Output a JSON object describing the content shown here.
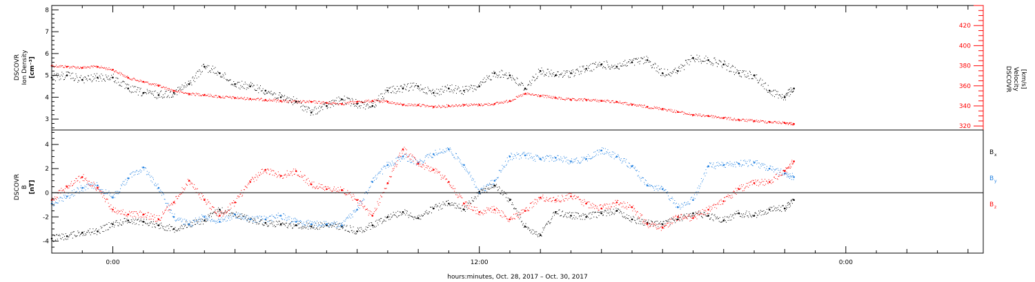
{
  "figure": {
    "xlabel": "hours:minutes, Oct. 28, 2017 – Oct. 30, 2017",
    "x_tick_labels": [
      {
        "hour": 0,
        "label": "0:00"
      },
      {
        "hour": 12,
        "label": "12:00"
      },
      {
        "hour": 24,
        "label": "0:00"
      }
    ],
    "xlim_hours": [
      -2,
      28.5
    ],
    "data_end_hour": 22.3
  },
  "colors": {
    "black": "#000000",
    "red": "#ff0000",
    "blue": "#1f7fe0"
  },
  "chart_data": [
    {
      "type": "scatter",
      "panel": "plasma",
      "ylabel_lines": [
        "DSCOVR",
        "Ion Density",
        "[cm⁻³]"
      ],
      "ylim": [
        2.5,
        8.2
      ],
      "y_ticks": [
        3,
        4,
        5,
        6,
        7,
        8
      ],
      "right_axis": {
        "label_lines": [
          "DSCOVR",
          "Velocity",
          "[km/s]"
        ],
        "ylim": [
          316,
          440
        ],
        "ticks": [
          320,
          340,
          360,
          380,
          400,
          420
        ],
        "color": "#ff0000"
      },
      "series": [
        {
          "color": "#000000",
          "axis": "left",
          "points": [
            [
              -2.0,
              4.9
            ],
            [
              -1.5,
              5.0
            ],
            [
              -1.0,
              4.8
            ],
            [
              -0.5,
              4.9
            ],
            [
              0.0,
              4.9
            ],
            [
              0.5,
              4.4
            ],
            [
              1.0,
              4.2
            ],
            [
              1.5,
              4.1
            ],
            [
              2.0,
              4.2
            ],
            [
              2.5,
              4.6
            ],
            [
              3.0,
              5.4
            ],
            [
              3.5,
              5.1
            ],
            [
              4.0,
              4.6
            ],
            [
              4.5,
              4.5
            ],
            [
              5.0,
              4.3
            ],
            [
              5.5,
              4.0
            ],
            [
              6.0,
              3.8
            ],
            [
              6.5,
              3.3
            ],
            [
              7.0,
              3.6
            ],
            [
              7.5,
              3.9
            ],
            [
              8.0,
              3.7
            ],
            [
              8.5,
              3.6
            ],
            [
              9.0,
              4.3
            ],
            [
              9.5,
              4.4
            ],
            [
              10.0,
              4.5
            ],
            [
              10.5,
              4.2
            ],
            [
              11.0,
              4.4
            ],
            [
              11.5,
              4.3
            ],
            [
              12.0,
              4.5
            ],
            [
              12.5,
              5.1
            ],
            [
              13.0,
              5.0
            ],
            [
              13.5,
              4.4
            ],
            [
              14.0,
              5.2
            ],
            [
              14.5,
              5.0
            ],
            [
              15.0,
              5.1
            ],
            [
              15.5,
              5.3
            ],
            [
              16.0,
              5.5
            ],
            [
              16.5,
              5.4
            ],
            [
              17.0,
              5.6
            ],
            [
              17.5,
              5.7
            ],
            [
              18.0,
              5.1
            ],
            [
              18.5,
              5.2
            ],
            [
              19.0,
              5.8
            ],
            [
              19.5,
              5.7
            ],
            [
              20.0,
              5.5
            ],
            [
              20.5,
              5.1
            ],
            [
              21.0,
              5.0
            ],
            [
              21.5,
              4.3
            ],
            [
              22.0,
              4.0
            ],
            [
              22.3,
              4.4
            ]
          ]
        },
        {
          "color": "#ff0000",
          "axis": "right",
          "points": [
            [
              -2.0,
              380
            ],
            [
              -1.5,
              379
            ],
            [
              -1.0,
              378
            ],
            [
              -0.5,
              379
            ],
            [
              0.0,
              376
            ],
            [
              0.5,
              368
            ],
            [
              1.0,
              364
            ],
            [
              1.5,
              360
            ],
            [
              2.0,
              355
            ],
            [
              2.5,
              352
            ],
            [
              3.0,
              351
            ],
            [
              3.5,
              349
            ],
            [
              4.0,
              348
            ],
            [
              4.5,
              347
            ],
            [
              5.0,
              346
            ],
            [
              5.5,
              345
            ],
            [
              6.0,
              344
            ],
            [
              6.5,
              344
            ],
            [
              7.0,
              343
            ],
            [
              7.5,
              342
            ],
            [
              8.0,
              344
            ],
            [
              8.5,
              345
            ],
            [
              9.0,
              344
            ],
            [
              9.5,
              341
            ],
            [
              10.0,
              341
            ],
            [
              10.5,
              339
            ],
            [
              11.0,
              340
            ],
            [
              11.5,
              341
            ],
            [
              12.0,
              341
            ],
            [
              12.5,
              342
            ],
            [
              13.0,
              345
            ],
            [
              13.5,
              352
            ],
            [
              14.0,
              350
            ],
            [
              14.5,
              348
            ],
            [
              15.0,
              346
            ],
            [
              15.5,
              346
            ],
            [
              16.0,
              345
            ],
            [
              16.5,
              344
            ],
            [
              17.0,
              341
            ],
            [
              17.5,
              339
            ],
            [
              18.0,
              337
            ],
            [
              18.5,
              334
            ],
            [
              19.0,
              331
            ],
            [
              19.5,
              330
            ],
            [
              20.0,
              328
            ],
            [
              20.5,
              326
            ],
            [
              21.0,
              325
            ],
            [
              21.5,
              324
            ],
            [
              22.0,
              323
            ],
            [
              22.3,
              322
            ]
          ]
        }
      ]
    },
    {
      "type": "scatter",
      "panel": "magnetic",
      "ylabel_lines": [
        "DSCOVR",
        "B",
        "[nT]"
      ],
      "ylim": [
        -5,
        5.2
      ],
      "y_ticks": [
        -4,
        -2,
        0,
        2,
        4
      ],
      "zero_line": true,
      "series": [
        {
          "name": "Bx",
          "color": "#000000",
          "points": [
            [
              -2.0,
              -3.8
            ],
            [
              -1.5,
              -3.6
            ],
            [
              -1.0,
              -3.3
            ],
            [
              -0.5,
              -3.2
            ],
            [
              0.0,
              -2.6
            ],
            [
              0.5,
              -2.3
            ],
            [
              1.0,
              -2.4
            ],
            [
              1.5,
              -2.7
            ],
            [
              2.0,
              -3.0
            ],
            [
              2.5,
              -2.6
            ],
            [
              3.0,
              -2.3
            ],
            [
              3.5,
              -1.4
            ],
            [
              4.0,
              -1.8
            ],
            [
              4.5,
              -2.2
            ],
            [
              5.0,
              -2.5
            ],
            [
              5.5,
              -2.6
            ],
            [
              6.0,
              -2.7
            ],
            [
              6.5,
              -2.8
            ],
            [
              7.0,
              -2.7
            ],
            [
              7.5,
              -2.8
            ],
            [
              8.0,
              -3.2
            ],
            [
              8.5,
              -2.7
            ],
            [
              9.0,
              -2.0
            ],
            [
              9.5,
              -1.6
            ],
            [
              10.0,
              -2.1
            ],
            [
              10.5,
              -1.3
            ],
            [
              11.0,
              -0.9
            ],
            [
              11.5,
              -1.4
            ],
            [
              12.0,
              0.1
            ],
            [
              12.5,
              0.6
            ],
            [
              13.0,
              -0.6
            ],
            [
              13.5,
              -2.8
            ],
            [
              14.0,
              -3.5
            ],
            [
              14.5,
              -1.6
            ],
            [
              15.0,
              -1.9
            ],
            [
              15.5,
              -2.0
            ],
            [
              16.0,
              -1.7
            ],
            [
              16.5,
              -1.5
            ],
            [
              17.0,
              -2.2
            ],
            [
              17.5,
              -2.5
            ],
            [
              18.0,
              -2.6
            ],
            [
              18.5,
              -2.2
            ],
            [
              19.0,
              -1.7
            ],
            [
              19.5,
              -1.9
            ],
            [
              20.0,
              -2.3
            ],
            [
              20.5,
              -1.7
            ],
            [
              21.0,
              -1.9
            ],
            [
              21.5,
              -1.4
            ],
            [
              22.0,
              -1.3
            ],
            [
              22.3,
              -0.6
            ]
          ]
        },
        {
          "name": "By",
          "color": "#1f7fe0",
          "points": [
            [
              -2.0,
              -0.9
            ],
            [
              -1.5,
              -0.3
            ],
            [
              -1.0,
              0.4
            ],
            [
              -0.5,
              0.6
            ],
            [
              0.0,
              -0.4
            ],
            [
              0.5,
              1.2
            ],
            [
              1.0,
              2.1
            ],
            [
              1.5,
              0.4
            ],
            [
              2.0,
              -2.0
            ],
            [
              2.5,
              -2.6
            ],
            [
              3.0,
              -2.0
            ],
            [
              3.5,
              -2.4
            ],
            [
              4.0,
              -1.8
            ],
            [
              4.5,
              -2.2
            ],
            [
              5.0,
              -2.2
            ],
            [
              5.5,
              -1.9
            ],
            [
              6.0,
              -2.4
            ],
            [
              6.5,
              -2.6
            ],
            [
              7.0,
              -2.6
            ],
            [
              7.5,
              -2.7
            ],
            [
              8.0,
              -1.4
            ],
            [
              8.5,
              0.9
            ],
            [
              9.0,
              2.3
            ],
            [
              9.5,
              3.0
            ],
            [
              10.0,
              2.5
            ],
            [
              10.5,
              3.2
            ],
            [
              11.0,
              3.6
            ],
            [
              11.5,
              2.3
            ],
            [
              12.0,
              0.0
            ],
            [
              12.5,
              1.0
            ],
            [
              13.0,
              3.0
            ],
            [
              13.5,
              3.1
            ],
            [
              14.0,
              2.8
            ],
            [
              14.5,
              2.9
            ],
            [
              15.0,
              2.6
            ],
            [
              15.5,
              2.8
            ],
            [
              16.0,
              3.5
            ],
            [
              16.5,
              3.0
            ],
            [
              17.0,
              2.2
            ],
            [
              17.5,
              0.6
            ],
            [
              18.0,
              0.3
            ],
            [
              18.5,
              -1.2
            ],
            [
              19.0,
              -0.6
            ],
            [
              19.5,
              2.2
            ],
            [
              20.0,
              2.3
            ],
            [
              20.5,
              2.4
            ],
            [
              21.0,
              2.5
            ],
            [
              21.5,
              2.0
            ],
            [
              22.0,
              1.6
            ],
            [
              22.3,
              1.3
            ]
          ]
        },
        {
          "name": "Bz",
          "color": "#ff0000",
          "points": [
            [
              -2.0,
              -0.6
            ],
            [
              -1.5,
              0.5
            ],
            [
              -1.0,
              1.3
            ],
            [
              -0.5,
              0.4
            ],
            [
              0.0,
              -1.4
            ],
            [
              0.5,
              -1.8
            ],
            [
              1.0,
              -1.8
            ],
            [
              1.5,
              -2.2
            ],
            [
              2.0,
              -0.8
            ],
            [
              2.5,
              1.0
            ],
            [
              3.0,
              -0.6
            ],
            [
              3.5,
              -1.9
            ],
            [
              4.0,
              -0.8
            ],
            [
              4.5,
              0.9
            ],
            [
              5.0,
              1.9
            ],
            [
              5.5,
              1.4
            ],
            [
              6.0,
              1.8
            ],
            [
              6.5,
              0.7
            ],
            [
              7.0,
              0.3
            ],
            [
              7.5,
              0.2
            ],
            [
              8.0,
              -0.6
            ],
            [
              8.5,
              -1.9
            ],
            [
              9.0,
              0.8
            ],
            [
              9.5,
              3.6
            ],
            [
              10.0,
              2.4
            ],
            [
              10.5,
              1.9
            ],
            [
              11.0,
              0.9
            ],
            [
              11.5,
              -0.9
            ],
            [
              12.0,
              -1.6
            ],
            [
              12.5,
              -1.4
            ],
            [
              13.0,
              -2.2
            ],
            [
              13.5,
              -1.5
            ],
            [
              14.0,
              -0.4
            ],
            [
              14.5,
              -0.6
            ],
            [
              15.0,
              -0.3
            ],
            [
              15.5,
              -0.9
            ],
            [
              16.0,
              -1.3
            ],
            [
              16.5,
              -0.8
            ],
            [
              17.0,
              -1.2
            ],
            [
              17.5,
              -2.6
            ],
            [
              18.0,
              -2.9
            ],
            [
              18.5,
              -2.0
            ],
            [
              19.0,
              -2.1
            ],
            [
              19.5,
              -1.4
            ],
            [
              20.0,
              -0.7
            ],
            [
              20.5,
              0.3
            ],
            [
              21.0,
              0.8
            ],
            [
              21.5,
              0.9
            ],
            [
              22.0,
              1.8
            ],
            [
              22.3,
              2.6
            ]
          ]
        }
      ],
      "legend": {
        "placement": "right",
        "entries": [
          {
            "main": "B",
            "sub": "x",
            "color": "#000000"
          },
          {
            "main": "B",
            "sub": "y",
            "color": "#1f7fe0"
          },
          {
            "main": "B",
            "sub": "z",
            "color": "#ff0000"
          }
        ]
      }
    }
  ]
}
